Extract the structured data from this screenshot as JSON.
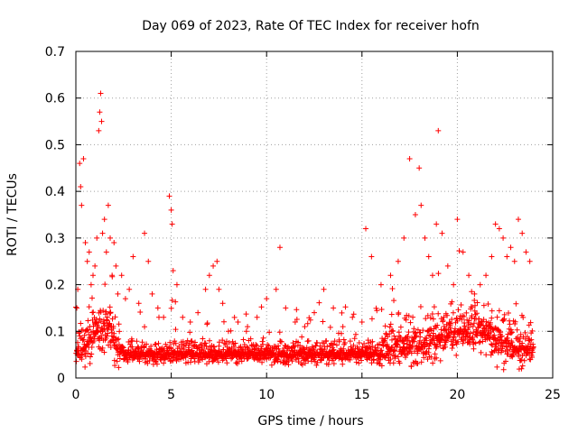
{
  "chart_data": {
    "type": "scatter",
    "title": "Day 069 of 2023, Rate Of TEC Index for receiver hofn",
    "xlabel": "GPS time / hours",
    "ylabel": "ROTI / TECUs",
    "xlim": [
      0,
      25
    ],
    "ylim": [
      0,
      0.7
    ],
    "x_ticks": [
      "0",
      "5",
      "10",
      "15",
      "20",
      "25"
    ],
    "y_ticks": [
      "0",
      "0.1",
      "0.2",
      "0.3",
      "0.4",
      "0.5",
      "0.6",
      "0.7"
    ],
    "grid": true,
    "marker": "+",
    "color": "#ff0000",
    "series": [
      {
        "x": [
          0.05,
          0.1,
          0.2,
          0.25,
          0.3,
          0.4,
          0.5,
          0.6,
          0.7,
          0.8,
          0.9,
          1.0,
          1.1,
          1.2,
          1.25,
          1.3,
          1.35,
          1.4,
          1.5,
          1.6,
          1.7,
          1.8,
          1.9,
          2.0,
          2.1,
          2.2,
          2.4,
          2.6,
          2.8,
          3.0,
          3.3,
          3.6,
          3.8,
          4.0,
          4.3,
          4.6,
          4.9,
          5.0,
          5.05,
          5.1,
          5.3,
          5.6,
          6.0,
          6.4,
          6.8,
          7.0,
          7.2,
          7.4,
          7.5,
          7.7,
          8.0,
          8.5,
          9.0,
          9.5,
          10.0,
          10.5,
          10.7,
          11.0,
          11.5,
          12.0,
          12.5,
          13.0,
          13.5,
          14.0,
          14.5,
          15.0,
          15.2,
          15.5,
          16.0,
          16.5,
          16.9,
          17.2,
          17.5,
          17.8,
          18.0,
          18.1,
          18.3,
          18.5,
          18.7,
          18.9,
          19.0,
          19.2,
          19.5,
          19.8,
          20.0,
          20.3,
          20.6,
          20.9,
          21.2,
          21.5,
          21.8,
          22.0,
          22.2,
          22.4,
          22.6,
          22.8,
          23.0,
          23.2,
          23.4,
          23.6,
          23.8
        ],
        "y": [
          0.15,
          0.19,
          0.46,
          0.41,
          0.37,
          0.47,
          0.29,
          0.25,
          0.27,
          0.2,
          0.22,
          0.24,
          0.3,
          0.53,
          0.57,
          0.61,
          0.55,
          0.31,
          0.34,
          0.27,
          0.37,
          0.3,
          0.22,
          0.29,
          0.24,
          0.18,
          0.22,
          0.17,
          0.19,
          0.26,
          0.16,
          0.31,
          0.25,
          0.18,
          0.15,
          0.13,
          0.39,
          0.36,
          0.33,
          0.23,
          0.2,
          0.13,
          0.12,
          0.14,
          0.19,
          0.22,
          0.24,
          0.25,
          0.19,
          0.16,
          0.1,
          0.12,
          0.11,
          0.13,
          0.17,
          0.19,
          0.28,
          0.15,
          0.12,
          0.11,
          0.14,
          0.19,
          0.15,
          0.11,
          0.13,
          0.12,
          0.32,
          0.26,
          0.2,
          0.22,
          0.25,
          0.3,
          0.47,
          0.35,
          0.45,
          0.37,
          0.3,
          0.26,
          0.22,
          0.33,
          0.53,
          0.31,
          0.24,
          0.2,
          0.34,
          0.27,
          0.22,
          0.18,
          0.2,
          0.22,
          0.26,
          0.33,
          0.32,
          0.3,
          0.26,
          0.28,
          0.25,
          0.34,
          0.31,
          0.27,
          0.25
        ],
        "density_note_hidden": ""
      }
    ]
  }
}
